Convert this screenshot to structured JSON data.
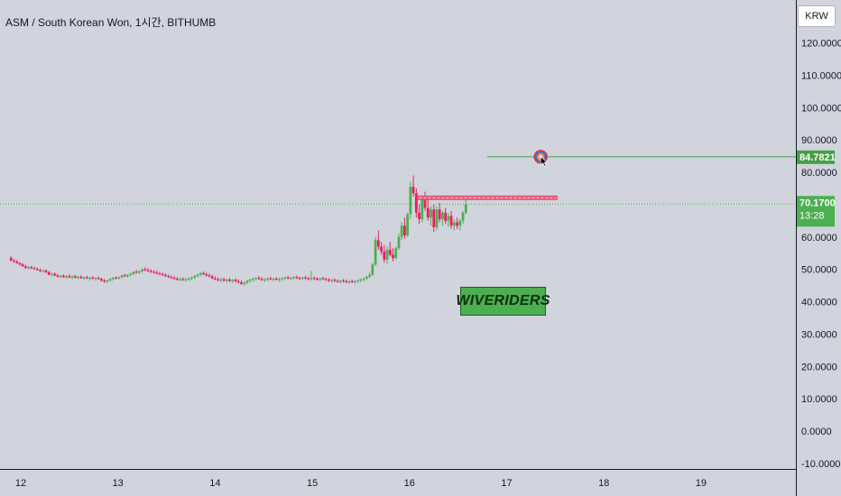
{
  "header": {
    "title": "ASM / South Korean Won, 1시간, BITHUMB",
    "currency": "KRW"
  },
  "watermark": "WIVERIDERS",
  "colors": {
    "background": "#d1d4dc",
    "up": "#4caf50",
    "down": "#e91e63",
    "target_line": "#43a047",
    "resistance": "#e8305a"
  },
  "chart_data": {
    "type": "candlestick",
    "ylim": [
      -14,
      132
    ],
    "y_ticks": [
      "120.0000",
      "110.0000",
      "100.0000",
      "90.0000",
      "80.0000",
      "60.0000",
      "50.0000",
      "40.0000",
      "30.0000",
      "20.0000",
      "10.0000",
      "0.0000",
      "-10.0000"
    ],
    "x_ticks": [
      "12",
      "13",
      "14",
      "15",
      "16",
      "17",
      "18",
      "19"
    ],
    "current_price": {
      "value": 70.17,
      "label": "70.1700",
      "countdown": "13:28"
    },
    "target": {
      "value": 84.7821,
      "label": "84.7821",
      "icon": "target-icon"
    },
    "resistance_zone": {
      "from": 71.6,
      "to": 72.6
    },
    "candles_summary": "Hourly ASM/KRW candles from day 11.9 to 16.6: sideways near 47-53 until late day 15, then sharp rally to ~79 on day 16, settling 62-72.",
    "candles": [
      [
        11.9,
        53.5,
        54.0,
        52.5,
        52.7
      ],
      [
        11.93,
        52.7,
        53.2,
        52.0,
        52.4
      ],
      [
        11.96,
        52.4,
        52.9,
        51.8,
        51.9
      ],
      [
        11.99,
        51.9,
        52.3,
        51.2,
        51.5
      ],
      [
        12.02,
        51.5,
        52.0,
        50.8,
        50.9
      ],
      [
        12.05,
        50.9,
        51.4,
        50.2,
        50.4
      ],
      [
        12.08,
        50.4,
        51.0,
        50.0,
        50.7
      ],
      [
        12.11,
        50.7,
        51.1,
        50.1,
        50.3
      ],
      [
        12.14,
        50.3,
        50.8,
        49.9,
        50.1
      ],
      [
        12.17,
        50.1,
        50.6,
        49.6,
        49.8
      ],
      [
        12.2,
        49.8,
        50.3,
        49.2,
        49.4
      ],
      [
        12.23,
        49.4,
        50.0,
        49.0,
        49.6
      ],
      [
        12.26,
        49.6,
        50.0,
        48.8,
        49.1
      ],
      [
        12.29,
        49.1,
        49.5,
        48.2,
        48.3
      ],
      [
        12.32,
        48.3,
        49.0,
        47.8,
        48.6
      ],
      [
        12.35,
        48.6,
        49.0,
        47.9,
        48.1
      ],
      [
        12.38,
        48.1,
        48.6,
        47.5,
        47.7
      ],
      [
        12.41,
        47.7,
        48.3,
        47.2,
        48.0
      ],
      [
        12.44,
        48.0,
        48.4,
        47.4,
        47.6
      ],
      [
        12.47,
        47.6,
        48.2,
        47.1,
        47.9
      ],
      [
        12.5,
        47.9,
        48.4,
        47.3,
        47.5
      ],
      [
        12.53,
        47.5,
        48.1,
        47.0,
        47.8
      ],
      [
        12.56,
        47.8,
        48.3,
        47.2,
        47.4
      ],
      [
        12.59,
        47.4,
        48.0,
        46.9,
        47.7
      ],
      [
        12.62,
        47.7,
        48.1,
        47.1,
        47.3
      ],
      [
        12.65,
        47.3,
        47.8,
        46.8,
        47.5
      ],
      [
        12.68,
        47.5,
        48.0,
        47.0,
        47.2
      ],
      [
        12.71,
        47.2,
        47.7,
        46.6,
        47.4
      ],
      [
        12.74,
        47.4,
        47.9,
        46.9,
        47.1
      ],
      [
        12.77,
        47.1,
        47.6,
        46.5,
        47.3
      ],
      [
        12.8,
        47.3,
        47.8,
        46.8,
        47.0
      ],
      [
        12.83,
        47.0,
        47.4,
        46.2,
        46.5
      ],
      [
        12.86,
        46.5,
        47.0,
        45.8,
        46.2
      ],
      [
        12.89,
        46.2,
        46.8,
        45.7,
        46.6
      ],
      [
        12.92,
        46.6,
        47.3,
        46.1,
        47.0
      ],
      [
        12.95,
        47.0,
        47.6,
        46.5,
        47.4
      ],
      [
        12.98,
        47.4,
        47.9,
        46.9,
        47.2
      ],
      [
        13.01,
        47.2,
        47.8,
        46.8,
        47.6
      ],
      [
        13.04,
        47.6,
        48.3,
        47.2,
        48.1
      ],
      [
        13.07,
        48.1,
        48.6,
        47.6,
        47.9
      ],
      [
        13.1,
        47.9,
        48.5,
        47.4,
        48.3
      ],
      [
        13.13,
        48.3,
        48.9,
        47.8,
        48.6
      ],
      [
        13.16,
        48.6,
        49.4,
        48.2,
        49.2
      ],
      [
        13.19,
        49.2,
        49.8,
        48.7,
        49.0
      ],
      [
        13.22,
        49.0,
        49.6,
        48.5,
        49.4
      ],
      [
        13.25,
        49.4,
        50.2,
        49.0,
        50.0
      ],
      [
        13.28,
        50.0,
        50.6,
        49.4,
        49.7
      ],
      [
        13.31,
        49.7,
        50.3,
        49.1,
        49.5
      ],
      [
        13.34,
        49.5,
        50.0,
        48.9,
        49.2
      ],
      [
        13.37,
        49.2,
        49.8,
        48.7,
        49.0
      ],
      [
        13.4,
        49.0,
        49.6,
        48.4,
        48.7
      ],
      [
        13.43,
        48.7,
        49.3,
        48.2,
        48.5
      ],
      [
        13.46,
        48.5,
        49.0,
        47.9,
        48.2
      ],
      [
        13.49,
        48.2,
        48.8,
        47.6,
        47.9
      ],
      [
        13.52,
        47.9,
        48.4,
        47.3,
        47.6
      ],
      [
        13.55,
        47.6,
        48.1,
        47.0,
        47.3
      ],
      [
        13.58,
        47.3,
        47.9,
        46.8,
        47.1
      ],
      [
        13.61,
        47.1,
        47.6,
        46.5,
        46.8
      ],
      [
        13.64,
        46.8,
        47.4,
        46.3,
        47.0
      ],
      [
        13.67,
        47.0,
        47.5,
        46.4,
        46.7
      ],
      [
        13.7,
        46.7,
        47.3,
        46.2,
        46.9
      ],
      [
        13.73,
        46.9,
        47.5,
        46.4,
        47.2
      ],
      [
        13.76,
        47.2,
        47.8,
        46.7,
        47.5
      ],
      [
        13.79,
        47.5,
        48.2,
        47.0,
        48.0
      ],
      [
        13.82,
        48.0,
        48.6,
        47.5,
        48.4
      ],
      [
        13.85,
        48.4,
        49.1,
        47.9,
        48.8
      ],
      [
        13.88,
        48.8,
        49.3,
        48.2,
        48.5
      ],
      [
        13.91,
        48.5,
        49.0,
        47.8,
        48.1
      ],
      [
        13.94,
        48.1,
        48.7,
        47.5,
        47.8
      ],
      [
        13.97,
        47.8,
        48.3,
        47.0,
        47.2
      ],
      [
        14.0,
        47.2,
        47.8,
        46.6,
        46.9
      ],
      [
        14.03,
        46.9,
        47.5,
        46.3,
        46.6
      ],
      [
        14.06,
        46.6,
        47.2,
        46.0,
        46.9
      ],
      [
        14.09,
        46.9,
        47.4,
        46.2,
        46.5
      ],
      [
        14.12,
        46.5,
        47.1,
        45.9,
        46.8
      ],
      [
        14.15,
        46.8,
        47.3,
        46.1,
        46.4
      ],
      [
        14.18,
        46.4,
        47.0,
        45.8,
        46.7
      ],
      [
        14.21,
        46.7,
        47.2,
        46.0,
        46.3
      ],
      [
        14.24,
        46.3,
        46.9,
        45.6,
        46.0
      ],
      [
        14.27,
        46.0,
        46.6,
        45.2,
        45.5
      ],
      [
        14.3,
        45.5,
        46.2,
        44.9,
        45.9
      ],
      [
        14.33,
        45.9,
        46.7,
        45.4,
        46.5
      ],
      [
        14.36,
        46.5,
        47.1,
        45.9,
        46.8
      ],
      [
        14.39,
        46.8,
        47.4,
        46.2,
        47.1
      ],
      [
        14.42,
        47.1,
        47.7,
        46.5,
        47.3
      ],
      [
        14.45,
        47.3,
        47.9,
        46.7,
        47.0
      ],
      [
        14.48,
        47.0,
        47.6,
        46.4,
        46.7
      ],
      [
        14.51,
        46.7,
        47.2,
        46.1,
        46.9
      ],
      [
        14.54,
        46.9,
        47.5,
        46.3,
        47.2
      ],
      [
        14.57,
        47.2,
        47.7,
        46.6,
        46.9
      ],
      [
        14.6,
        46.9,
        47.4,
        46.3,
        47.1
      ],
      [
        14.63,
        47.1,
        47.6,
        46.5,
        46.8
      ],
      [
        14.66,
        46.8,
        47.3,
        46.2,
        47.0
      ],
      [
        14.69,
        47.0,
        47.5,
        46.4,
        47.3
      ],
      [
        14.72,
        47.3,
        47.8,
        46.7,
        47.5
      ],
      [
        14.75,
        47.5,
        48.0,
        46.9,
        47.2
      ],
      [
        14.78,
        47.2,
        47.7,
        46.6,
        47.4
      ],
      [
        14.81,
        47.4,
        47.9,
        46.8,
        47.6
      ],
      [
        14.84,
        47.6,
        48.1,
        47.0,
        47.3
      ],
      [
        14.87,
        47.3,
        47.8,
        46.7,
        47.1
      ],
      [
        14.9,
        47.1,
        47.7,
        46.6,
        47.4
      ],
      [
        14.93,
        47.4,
        48.0,
        46.9,
        47.2
      ],
      [
        14.96,
        47.2,
        47.7,
        46.6,
        47.0
      ],
      [
        14.99,
        47.0,
        49.5,
        46.6,
        47.3
      ],
      [
        15.02,
        47.3,
        47.8,
        46.7,
        47.1
      ],
      [
        15.05,
        47.1,
        47.6,
        46.5,
        46.9
      ],
      [
        15.08,
        46.9,
        47.4,
        46.3,
        47.2
      ],
      [
        15.11,
        47.2,
        47.7,
        46.6,
        47.0
      ],
      [
        15.14,
        47.0,
        47.5,
        46.4,
        46.8
      ],
      [
        15.17,
        46.8,
        47.3,
        46.1,
        46.5
      ],
      [
        15.2,
        46.5,
        47.0,
        45.9,
        46.7
      ],
      [
        15.23,
        46.7,
        47.2,
        46.1,
        46.4
      ],
      [
        15.26,
        46.4,
        46.9,
        45.8,
        46.2
      ],
      [
        15.29,
        46.2,
        46.8,
        45.6,
        46.5
      ],
      [
        15.32,
        46.5,
        47.0,
        45.9,
        46.3
      ],
      [
        15.35,
        46.3,
        46.8,
        45.7,
        46.0
      ],
      [
        15.38,
        46.0,
        46.6,
        45.5,
        46.3
      ],
      [
        15.41,
        46.3,
        46.8,
        45.7,
        46.1
      ],
      [
        15.44,
        46.1,
        46.6,
        45.5,
        46.4
      ],
      [
        15.47,
        46.4,
        46.9,
        45.8,
        46.6
      ],
      [
        15.5,
        46.6,
        47.1,
        46.0,
        46.9
      ],
      [
        15.53,
        46.9,
        47.5,
        46.3,
        47.2
      ],
      [
        15.56,
        47.2,
        48.0,
        46.7,
        47.7
      ],
      [
        15.59,
        47.7,
        49.0,
        47.2,
        48.3
      ],
      [
        15.62,
        48.3,
        52.0,
        48.0,
        51.5
      ],
      [
        15.65,
        51.5,
        60.0,
        51.0,
        59.0
      ],
      [
        15.68,
        59.0,
        62.0,
        56.0,
        57.0
      ],
      [
        15.71,
        57.0,
        58.5,
        54.5,
        55.5
      ],
      [
        15.74,
        55.5,
        57.5,
        52.0,
        53.0
      ],
      [
        15.77,
        53.0,
        57.0,
        51.5,
        56.0
      ],
      [
        15.8,
        56.0,
        58.5,
        54.0,
        54.5
      ],
      [
        15.83,
        54.5,
        56.5,
        52.5,
        53.5
      ],
      [
        15.86,
        53.5,
        57.0,
        53.0,
        56.5
      ],
      [
        15.89,
        56.5,
        61.0,
        56.0,
        60.0
      ],
      [
        15.92,
        60.0,
        64.5,
        59.0,
        63.5
      ],
      [
        15.95,
        63.5,
        66.0,
        59.5,
        60.5
      ],
      [
        15.98,
        60.5,
        67.5,
        60.0,
        67.0
      ],
      [
        16.01,
        67.0,
        77.0,
        65.5,
        75.5
      ],
      [
        16.04,
        75.5,
        79.0,
        72.5,
        73.5
      ],
      [
        16.07,
        73.5,
        75.0,
        66.0,
        67.5
      ],
      [
        16.1,
        67.5,
        70.0,
        64.0,
        65.5
      ],
      [
        16.13,
        65.5,
        72.5,
        64.5,
        71.5
      ],
      [
        16.16,
        71.5,
        74.0,
        68.0,
        69.0
      ],
      [
        16.19,
        69.0,
        72.0,
        65.0,
        66.0
      ],
      [
        16.22,
        66.0,
        69.5,
        63.5,
        68.5
      ],
      [
        16.25,
        68.5,
        70.0,
        61.5,
        63.0
      ],
      [
        16.28,
        63.0,
        69.5,
        62.0,
        68.5
      ],
      [
        16.31,
        68.5,
        70.5,
        64.5,
        65.5
      ],
      [
        16.34,
        65.5,
        68.0,
        63.5,
        67.5
      ],
      [
        16.37,
        67.5,
        69.0,
        64.0,
        65.0
      ],
      [
        16.4,
        65.0,
        67.5,
        63.0,
        66.5
      ],
      [
        16.43,
        66.5,
        68.0,
        62.5,
        63.5
      ],
      [
        16.46,
        63.5,
        65.5,
        62.0,
        64.5
      ],
      [
        16.49,
        64.5,
        66.0,
        62.5,
        63.5
      ],
      [
        16.52,
        63.5,
        65.5,
        62.0,
        65.0
      ],
      [
        16.55,
        65.0,
        68.0,
        64.0,
        67.5
      ],
      [
        16.58,
        67.5,
        72.5,
        67.0,
        70.17
      ]
    ]
  }
}
